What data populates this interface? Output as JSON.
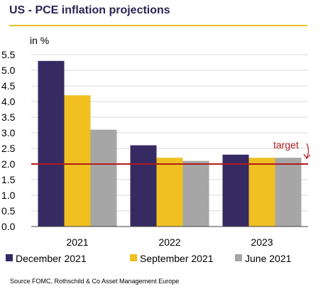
{
  "chart_data": {
    "type": "bar",
    "title": "US - PCE inflation projections",
    "ylabel": "in %",
    "categories": [
      "2021",
      "2022",
      "2023"
    ],
    "series": [
      {
        "name": "December 2021",
        "values": [
          5.3,
          2.6,
          2.3
        ],
        "color": "#352a62"
      },
      {
        "name": "September 2021",
        "values": [
          4.2,
          2.2,
          2.2
        ],
        "color": "#f0c020"
      },
      {
        "name": "June 2021",
        "values": [
          3.1,
          2.1,
          2.2
        ],
        "color": "#a6a6a6"
      }
    ],
    "ylim": [
      0,
      5.5
    ],
    "yticks": [
      "0.0",
      "0.5",
      "1.0",
      "1.5",
      "2.0",
      "2.5",
      "3.0",
      "3.5",
      "4.0",
      "4.5",
      "5.0",
      "5.5"
    ],
    "grid": true,
    "target": {
      "label": "target",
      "value": 2.0,
      "color": "#b01c1c"
    },
    "legend_position": "bottom",
    "source": "Source FOMC, Rothschild & Co Asset Management Europe"
  }
}
